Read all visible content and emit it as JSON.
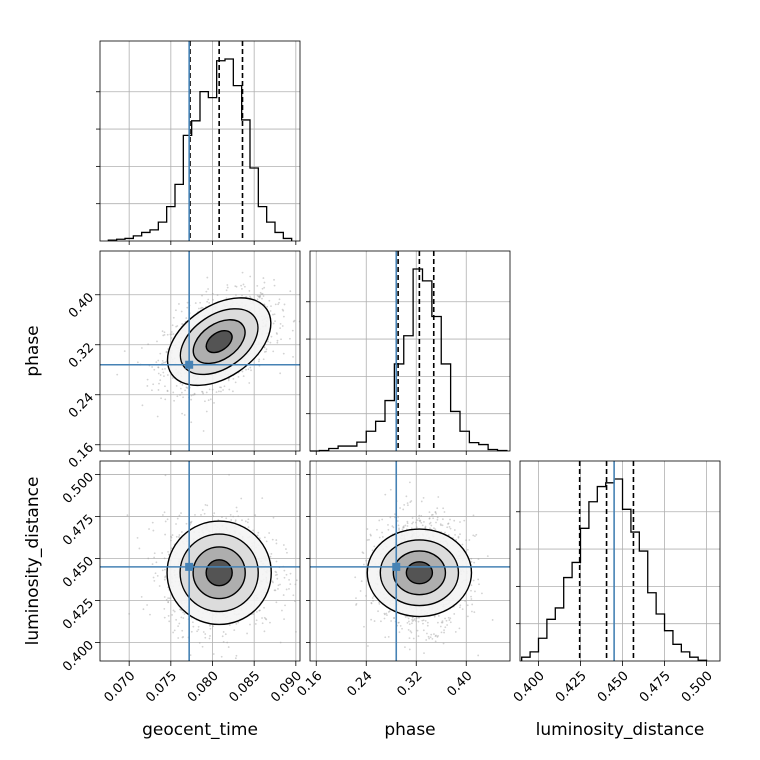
{
  "chart_data": {
    "type": "corner",
    "parameters": [
      "geocent_time",
      "phase",
      "luminosity_distance"
    ],
    "axis_labels": {
      "x": [
        "geocent_time",
        "phase",
        "luminosity_distance"
      ],
      "y": [
        "phase",
        "luminosity_distance"
      ]
    },
    "ranges": {
      "geocent_time": [
        0.0665,
        0.0905
      ],
      "phase": [
        0.15,
        0.47
      ],
      "luminosity_distance": [
        0.389,
        0.508
      ]
    },
    "ticks": {
      "geocent_time": [
        "0.070",
        "0.075",
        "0.080",
        "0.085",
        "0.090"
      ],
      "phase": [
        "0.16",
        "0.24",
        "0.32",
        "0.40"
      ],
      "luminosity_distance": [
        "0.400",
        "0.425",
        "0.450",
        "0.475",
        "0.500"
      ]
    },
    "truths": {
      "geocent_time": 0.0772,
      "phase": 0.288,
      "luminosity_distance": 0.445
    },
    "quantiles": {
      "geocent_time": [
        0.0773,
        0.0808,
        0.0836
      ],
      "phase": [
        0.291,
        0.325,
        0.348
      ],
      "luminosity_distance": [
        0.4245,
        0.4405,
        0.4565
      ]
    },
    "histograms": {
      "geocent_time": {
        "bin_edges": [
          0.0675,
          0.0685,
          0.0695,
          0.0705,
          0.0715,
          0.0725,
          0.0735,
          0.0745,
          0.0755,
          0.0765,
          0.0775,
          0.0785,
          0.0795,
          0.0805,
          0.0815,
          0.0825,
          0.0835,
          0.0845,
          0.0855,
          0.0865,
          0.0875,
          0.0885,
          0.0895
        ],
        "counts": [
          1,
          2,
          3,
          6,
          10,
          13,
          22,
          40,
          66,
          123,
          140,
          174,
          167,
          210,
          212,
          181,
          141,
          85,
          40,
          22,
          10,
          3
        ]
      },
      "phase": {
        "bin_edges": [
          0.15,
          0.165,
          0.18,
          0.195,
          0.21,
          0.225,
          0.24,
          0.255,
          0.27,
          0.285,
          0.3,
          0.315,
          0.33,
          0.345,
          0.36,
          0.375,
          0.39,
          0.405,
          0.42,
          0.435,
          0.45,
          0.465
        ],
        "counts": [
          0,
          1,
          5,
          10,
          10,
          18,
          40,
          60,
          102,
          176,
          233,
          368,
          344,
          272,
          176,
          80,
          40,
          17,
          13,
          3,
          1
        ]
      },
      "luminosity_distance": {
        "bin_edges": [
          0.39,
          0.395,
          0.4,
          0.405,
          0.41,
          0.415,
          0.42,
          0.425,
          0.43,
          0.435,
          0.44,
          0.445,
          0.45,
          0.455,
          0.46,
          0.465,
          0.47,
          0.475,
          0.48,
          0.485,
          0.49,
          0.495,
          0.5
        ],
        "counts": [
          5,
          12,
          30,
          55,
          70,
          110,
          130,
          175,
          210,
          230,
          235,
          240,
          200,
          170,
          145,
          90,
          62,
          40,
          22,
          12,
          5,
          1
        ]
      }
    },
    "posterior_2d": {
      "geocent_time_vs_phase": {
        "mean": [
          0.0808,
          0.325
        ],
        "std": [
          0.0031,
          0.035
        ],
        "correlation": 0.42,
        "contour_levels": [
          "0.5-sigma",
          "1-sigma",
          "1.5-sigma",
          "2-sigma"
        ]
      },
      "geocent_time_vs_luminosity_distance": {
        "mean": [
          0.0808,
          0.4415
        ],
        "std": [
          0.0031,
          0.0155
        ],
        "correlation": 0.0,
        "contour_levels": [
          "0.5-sigma",
          "1-sigma",
          "1.5-sigma",
          "2-sigma"
        ]
      },
      "phase_vs_luminosity_distance": {
        "mean": [
          0.325,
          0.4415
        ],
        "std": [
          0.035,
          0.0155
        ],
        "correlation": 0.0,
        "contour_levels": [
          "0.5-sigma",
          "1-sigma",
          "1.5-sigma",
          "2-sigma"
        ]
      }
    },
    "grid": true,
    "colors": {
      "truth": "#4682b4",
      "histogram": "#000000",
      "quantile": "#000000",
      "contour": "#000000",
      "scatter": "#9e9e9e",
      "grid": "#b0b0b0"
    }
  }
}
